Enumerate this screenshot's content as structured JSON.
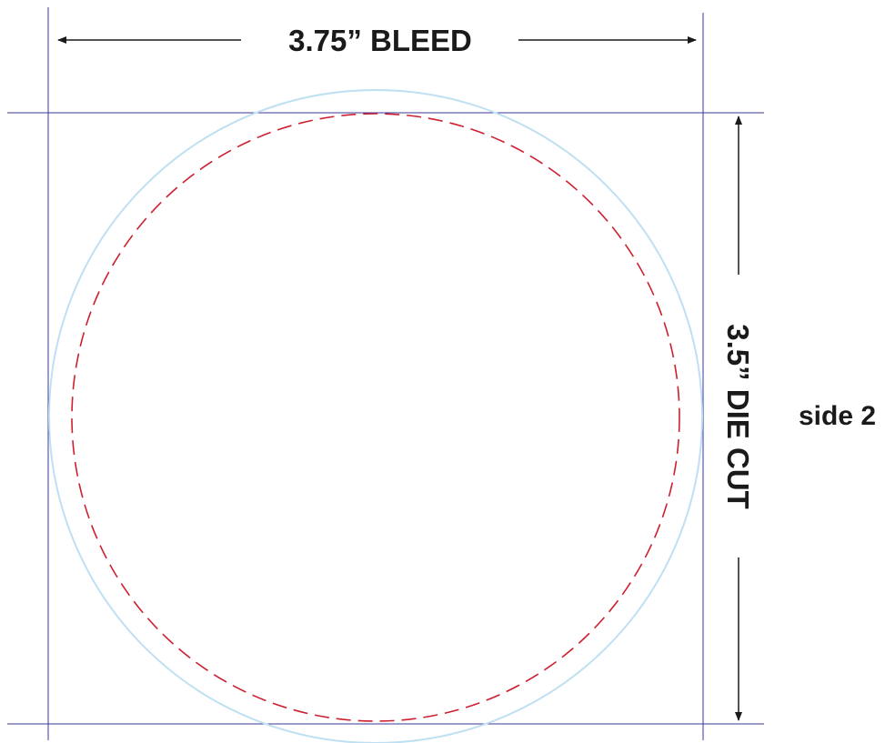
{
  "labels": {
    "bleed": "3.75” BLEED",
    "die_cut": "3.5” DIE CUT",
    "side": "side 2"
  },
  "colors": {
    "guide_lines": "#3a3a9a",
    "bleed_circle": "#bfe0f2",
    "die_cut_circle": "#cc1f2f",
    "arrows": "#1a1a1a",
    "text": "#1a1a1a",
    "background": "#ffffff"
  }
}
